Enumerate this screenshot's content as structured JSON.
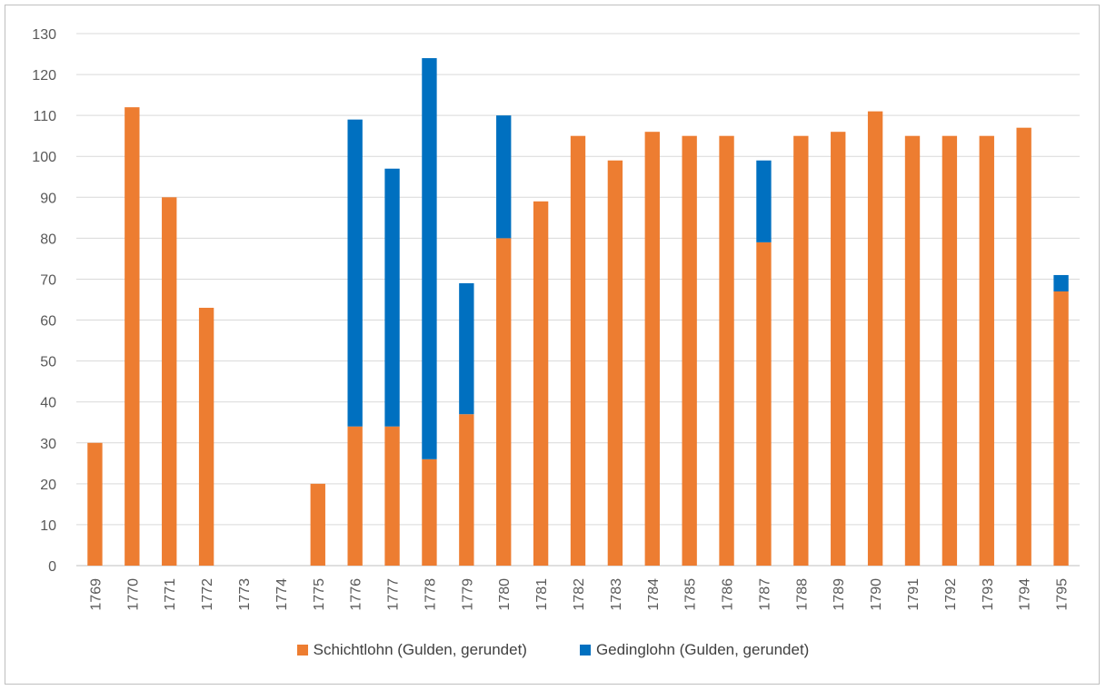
{
  "chart_data": {
    "type": "bar",
    "stacked": true,
    "categories": [
      "1769",
      "1770",
      "1771",
      "1772",
      "1773",
      "1774",
      "1775",
      "1776",
      "1777",
      "1778",
      "1779",
      "1780",
      "1781",
      "1782",
      "1783",
      "1784",
      "1785",
      "1786",
      "1787",
      "1788",
      "1789",
      "1790",
      "1791",
      "1792",
      "1793",
      "1794",
      "1795"
    ],
    "series": [
      {
        "name": "Schichtlohn (Gulden, gerundet)",
        "color": "#ED7D31",
        "values": [
          30,
          112,
          90,
          63,
          0,
          0,
          20,
          34,
          34,
          26,
          37,
          80,
          89,
          105,
          99,
          106,
          105,
          105,
          79,
          105,
          106,
          111,
          105,
          105,
          105,
          107,
          67
        ]
      },
      {
        "name": "Gedinglohn (Gulden, gerundet)",
        "color": "#0070C0",
        "values": [
          0,
          0,
          0,
          0,
          0,
          0,
          0,
          75,
          63,
          98,
          32,
          30,
          0,
          0,
          0,
          0,
          0,
          0,
          20,
          0,
          0,
          0,
          0,
          0,
          0,
          0,
          4
        ]
      }
    ],
    "ylim": [
      0,
      130
    ],
    "yticks": [
      0,
      10,
      20,
      30,
      40,
      50,
      60,
      70,
      80,
      90,
      100,
      110,
      120,
      130
    ],
    "grid": true,
    "legend_position": "bottom",
    "title": "",
    "xlabel": "",
    "ylabel": ""
  }
}
